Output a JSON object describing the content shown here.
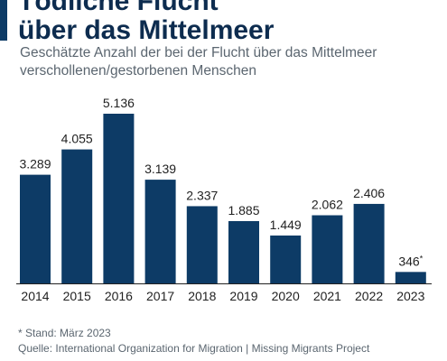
{
  "header": {
    "title_line1": "Tödliche Flucht",
    "title_line2": "über das Mittelmeer",
    "subtitle_line1": "Geschätzte Anzahl der bei der Flucht über das Mittelmeer",
    "subtitle_line2": "verschollenen/gestorbenen Menschen"
  },
  "footer": {
    "note": "* Stand: März 2023",
    "source": "Quelle: International Organization for Migration | Missing Migrants Project"
  },
  "colors": {
    "bar": "#0d3b66",
    "title": "#0d2c4f",
    "text": "#5b6670",
    "axis": "#222222"
  },
  "chart_data": {
    "type": "bar",
    "categories": [
      "2014",
      "2015",
      "2016",
      "2017",
      "2018",
      "2019",
      "2020",
      "2021",
      "2022",
      "2023"
    ],
    "values": [
      3289,
      4055,
      5136,
      3139,
      2337,
      1885,
      1449,
      2062,
      2406,
      346
    ],
    "value_labels": [
      "3.289",
      "4.055",
      "5.136",
      "3.139",
      "2.337",
      "1.885",
      "1.449",
      "2.062",
      "2.406",
      "346"
    ],
    "value_label_suffix": [
      "",
      "",
      "",
      "",
      "",
      "",
      "",
      "",
      "",
      "*"
    ],
    "title": "Tödliche Flucht über das Mittelmeer",
    "xlabel": "",
    "ylabel": "",
    "ylim": [
      0,
      5136
    ],
    "grid": false
  }
}
